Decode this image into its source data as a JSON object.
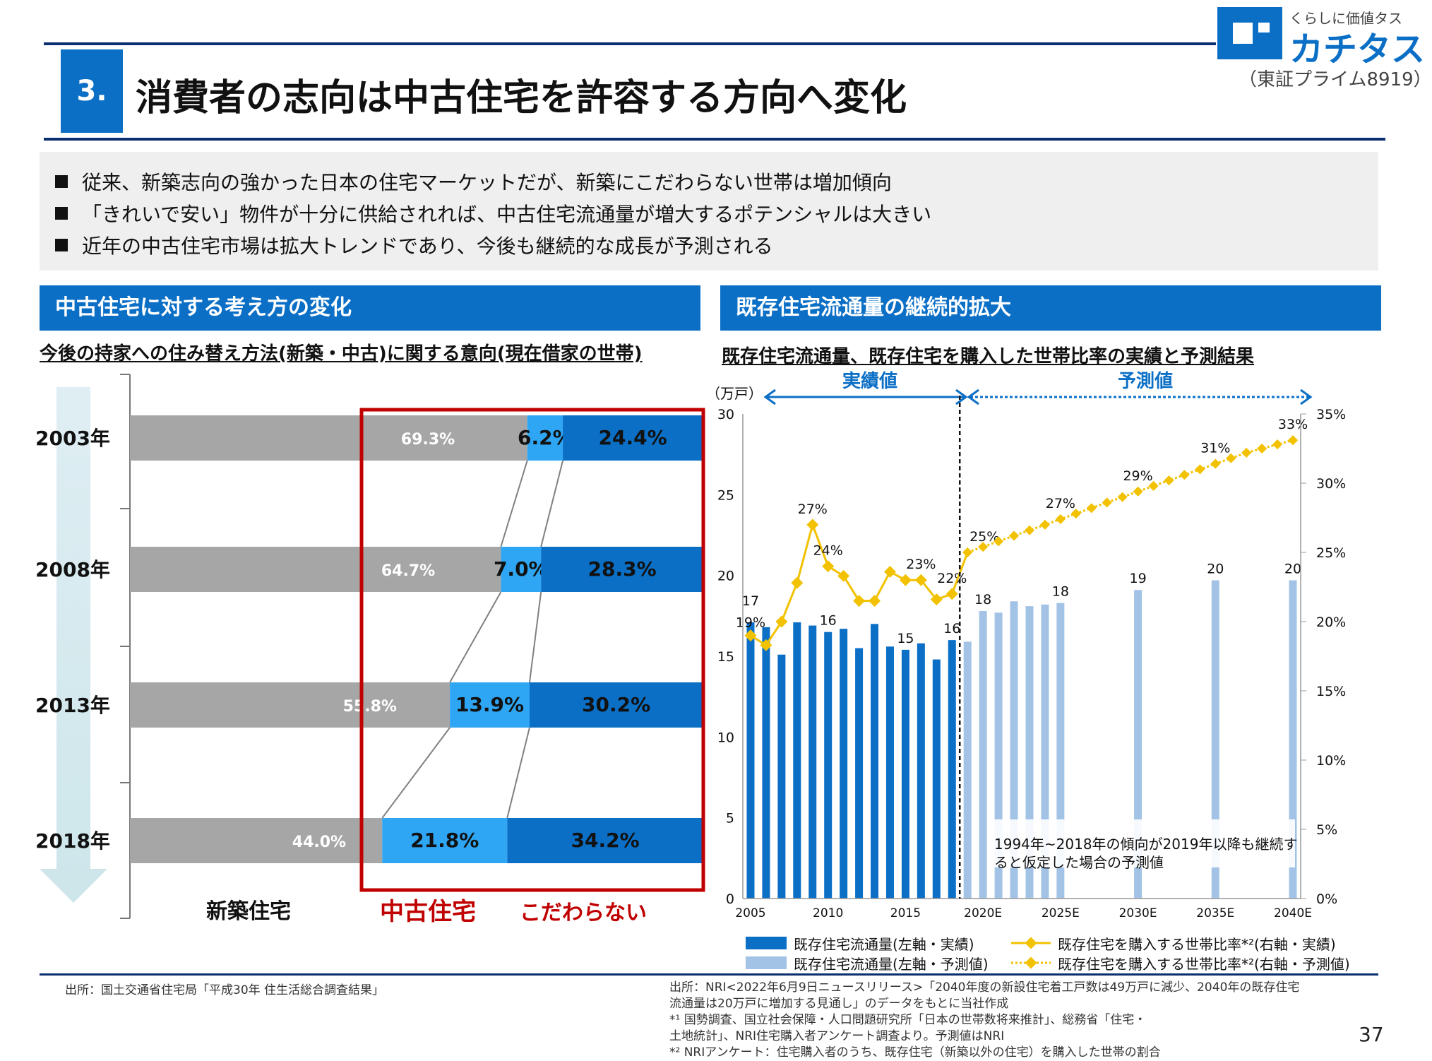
{
  "header": {
    "section_number": "3.",
    "title": "消費者の志向は中古住宅を許容する方向へ変化",
    "logo_tagline": "くらしに価値タス",
    "logo_name": "カチタス",
    "stock_code": "（東証プライム8919）"
  },
  "bullets": [
    "従来、新築志向の強かった日本の住宅マーケットだが、新築にこだわらない世帯は増加傾向",
    "「きれいで安い」物件が十分に供給されれば、中古住宅流通量が増大するポテンシャルは大きい",
    "近年の中古住宅市場は拡大トレンドであり、今後も継続的な成長が予測される"
  ],
  "left_panel": {
    "heading": "中古住宅に対する考え方の変化",
    "subheading": "今後の持家への住み替え方法(新築・中古)に関する意向(現在借家の世帯)",
    "category_labels": [
      "新築住宅",
      "中古住宅",
      "こだわらない"
    ]
  },
  "right_panel": {
    "heading": "既存住宅流通量の継続的拡大",
    "subheading": "既存住宅流通量、既存住宅を購入した世帯比率の実績と予測結果",
    "actual_label": "実績値",
    "forecast_label": "予測値",
    "unit_label": "（万戸）",
    "note": "1994年~2018年の傾向が2019年以降も継続すると仮定した場合の予測値",
    "legend": [
      "既存住宅流通量(左軸・実績)",
      "既存住宅流通量(左軸・予測値)",
      "既存住宅を購入する世帯比率*²(右軸・実績)",
      "既存住宅を購入する世帯比率*²(右軸・予測値)"
    ]
  },
  "chart_data": [
    {
      "type": "bar",
      "orientation": "horizontal-stacked",
      "categories": [
        "2003年",
        "2008年",
        "2013年",
        "2018年"
      ],
      "series": [
        {
          "name": "新築住宅",
          "values": [
            69.3,
            64.7,
            55.8,
            44.0
          ],
          "labels": [
            "69.3%",
            "64.7%",
            "55.8%",
            "44.0%"
          ],
          "color": "#a6a6a6"
        },
        {
          "name": "中古住宅",
          "values": [
            6.2,
            7.0,
            13.9,
            21.8
          ],
          "labels": [
            "6.2%",
            "7.0%",
            "13.9%",
            "21.8%"
          ],
          "color": "#2ea6f4"
        },
        {
          "name": "こだわらない",
          "values": [
            24.4,
            28.3,
            30.2,
            34.2
          ],
          "labels": [
            "24.4%",
            "28.3%",
            "30.2%",
            "34.2%"
          ],
          "color": "#0b6fc6"
        }
      ],
      "xlim": [
        0,
        100
      ]
    },
    {
      "type": "bar",
      "x": [
        2005,
        2006,
        2007,
        2008,
        2009,
        2010,
        2011,
        2012,
        2013,
        2014,
        2015,
        2016,
        2017,
        2018,
        2019,
        2020,
        2021,
        2022,
        2023,
        2024,
        2025,
        2026,
        2027,
        2028,
        2029,
        2030,
        2031,
        2032,
        2033,
        2034,
        2035,
        2036,
        2037,
        2038,
        2039,
        2040
      ],
      "x_tick_labels": [
        "2005",
        "2010",
        "2015",
        "2020E",
        "2025E",
        "2030E",
        "2035E",
        "2040E"
      ],
      "x_tick_years": [
        2005,
        2010,
        2015,
        2020,
        2025,
        2030,
        2035,
        2040
      ],
      "bars_actual": {
        "years": [
          2005,
          2006,
          2007,
          2008,
          2009,
          2010,
          2011,
          2012,
          2013,
          2014,
          2015,
          2016,
          2017,
          2018
        ],
        "values": [
          17.1,
          16.8,
          15.1,
          17.1,
          16.9,
          16.5,
          16.7,
          15.5,
          17.0,
          15.6,
          15.4,
          15.8,
          14.8,
          16.0
        ],
        "labels": {
          "2005": "17",
          "2010": "16",
          "2015": "15",
          "2018": "16"
        },
        "color": "#0b6fc6"
      },
      "bars_forecast": {
        "years": [
          2019,
          2020,
          2021,
          2022,
          2023,
          2024,
          2025,
          2030,
          2035,
          2040
        ],
        "values": [
          15.9,
          17.8,
          17.7,
          18.4,
          18.1,
          18.2,
          18.3,
          19.1,
          19.7,
          19.7
        ],
        "labels": {
          "2020": "18",
          "2025": "18",
          "2030": "19",
          "2035": "20",
          "2040": "20"
        },
        "color": "#a3c3e6"
      },
      "line_actual": {
        "years": [
          2005,
          2006,
          2007,
          2008,
          2009,
          2010,
          2011,
          2012,
          2013,
          2014,
          2015,
          2016,
          2017,
          2018
        ],
        "values": [
          19,
          18.3,
          20,
          22.8,
          27,
          24,
          23.3,
          21.5,
          21.5,
          23.6,
          23,
          23,
          21.6,
          22
        ],
        "labels": {
          "2005": "19%",
          "2009": "27%",
          "2010": "24%",
          "2016": "23%",
          "2018": "22%"
        },
        "color": "#f2c200"
      },
      "line_forecast": {
        "years": [
          2019,
          2020,
          2021,
          2022,
          2023,
          2024,
          2025,
          2026,
          2027,
          2028,
          2029,
          2030,
          2031,
          2032,
          2033,
          2034,
          2035,
          2036,
          2037,
          2038,
          2039,
          2040
        ],
        "values": [
          25,
          25.4,
          25.8,
          26.2,
          26.6,
          27,
          27.4,
          27.8,
          28.2,
          28.6,
          29,
          29.4,
          29.8,
          30.2,
          30.6,
          31,
          31.4,
          31.8,
          32.2,
          32.5,
          32.8,
          33.1
        ],
        "labels": {
          "2019": "25%",
          "2025": "27%",
          "2030": "29%",
          "2035": "31%",
          "2040": "33%"
        },
        "color": "#f2c200"
      },
      "ylim_left": [
        0,
        30
      ],
      "y_ticks_left": [
        "0",
        "5",
        "10",
        "15",
        "20",
        "25",
        "30"
      ],
      "ylim_right": [
        0,
        35
      ],
      "y_ticks_right": [
        "0%",
        "5%",
        "10%",
        "15%",
        "20%",
        "25%",
        "30%",
        "35%"
      ],
      "legend_position": "bottom"
    }
  ],
  "footer": {
    "source_left": "出所：国土交通省住宅局「平成30年 住生活総合調査結果」",
    "source_right": [
      "出所：NRI<2022年6月9日ニュースリリース>「2040年度の新設住宅着工戸数は49万戸に減少、2040年の既存住宅",
      "流通量は20万戸に増加する見通し」のデータをもとに当社作成",
      "*¹ 国勢調査、国立社会保障・人口問題研究所「日本の世帯数将来推計」、総務省「住宅・",
      "土地統計」、NRI住宅購入者アンケート調査より。予測値はNRI",
      "*² NRIアンケート：住宅購入者のうち、既存住宅（新築以外の住宅）を購入した世帯の割合"
    ],
    "page_number": "37"
  }
}
